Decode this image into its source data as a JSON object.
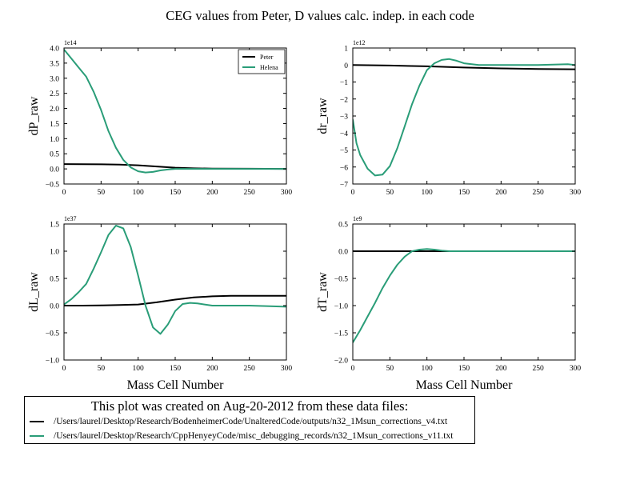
{
  "figure": {
    "title": "CEG values from Peter, D values calc. indep. in each code"
  },
  "colors": {
    "peter": "#000000",
    "helena": "#2a9d78"
  },
  "chart_data": [
    {
      "id": "dP",
      "type": "line",
      "ylabel": "dP_raw",
      "xlabel": "",
      "xlim": [
        0,
        300
      ],
      "ylim": [
        -0.5,
        4.0
      ],
      "exponent_label": "1e14",
      "x_ticks": [
        "0",
        "50",
        "100",
        "150",
        "200",
        "250",
        "300"
      ],
      "y_ticks": [
        -0.5,
        0.0,
        0.5,
        1.0,
        1.5,
        2.0,
        2.5,
        3.0,
        3.5,
        4.0
      ],
      "y_tick_labels": [
        "−0.5",
        "0.0",
        "0.5",
        "1.0",
        "1.5",
        "2.0",
        "2.5",
        "3.0",
        "3.5",
        "4.0"
      ],
      "legend": {
        "position": "top-right",
        "entries": [
          "Peter",
          "Helena"
        ]
      },
      "series": [
        {
          "name": "Peter",
          "color": "#000000",
          "x": [
            0,
            25,
            50,
            75,
            100,
            125,
            150,
            175,
            200,
            250,
            300
          ],
          "y": [
            0.16,
            0.155,
            0.15,
            0.14,
            0.12,
            0.08,
            0.04,
            0.02,
            0.01,
            0.005,
            0.0
          ]
        },
        {
          "name": "Helena",
          "color": "#2a9d78",
          "x": [
            0,
            10,
            20,
            30,
            40,
            50,
            60,
            70,
            80,
            90,
            100,
            110,
            120,
            130,
            140,
            150,
            170,
            200,
            250,
            300
          ],
          "y": [
            3.95,
            3.65,
            3.35,
            3.05,
            2.55,
            1.95,
            1.25,
            0.7,
            0.3,
            0.05,
            -0.08,
            -0.12,
            -0.1,
            -0.05,
            -0.02,
            0.0,
            0.0,
            0.0,
            0.0,
            0.0
          ]
        }
      ]
    },
    {
      "id": "dr",
      "type": "line",
      "ylabel": "dr_raw",
      "xlabel": "",
      "xlim": [
        0,
        300
      ],
      "ylim": [
        -7,
        1
      ],
      "exponent_label": "1e12",
      "x_ticks": [
        "0",
        "50",
        "100",
        "150",
        "200",
        "250",
        "300"
      ],
      "y_ticks": [
        -7,
        -6,
        -5,
        -4,
        -3,
        -2,
        -1,
        0,
        1
      ],
      "y_tick_labels": [
        "−7",
        "−6",
        "−5",
        "−4",
        "−3",
        "−2",
        "−1",
        "0",
        "1"
      ],
      "series": [
        {
          "name": "Peter",
          "color": "#000000",
          "x": [
            0,
            50,
            100,
            150,
            200,
            250,
            300
          ],
          "y": [
            0.0,
            -0.03,
            -0.08,
            -0.15,
            -0.2,
            -0.24,
            -0.25
          ]
        },
        {
          "name": "Helena",
          "color": "#2a9d78",
          "x": [
            0,
            5,
            10,
            20,
            30,
            40,
            50,
            60,
            70,
            80,
            90,
            100,
            110,
            120,
            130,
            140,
            150,
            170,
            200,
            250,
            290,
            300
          ],
          "y": [
            -3.2,
            -4.6,
            -5.3,
            -6.1,
            -6.5,
            -6.45,
            -5.95,
            -4.9,
            -3.6,
            -2.3,
            -1.2,
            -0.3,
            0.1,
            0.3,
            0.35,
            0.25,
            0.1,
            0.0,
            0.0,
            0.0,
            0.05,
            0.0
          ]
        }
      ]
    },
    {
      "id": "dL",
      "type": "line",
      "ylabel": "dL_raw",
      "xlabel": "Mass Cell Number",
      "xlim": [
        0,
        300
      ],
      "ylim": [
        -1.0,
        1.5
      ],
      "exponent_label": "1e37",
      "x_ticks": [
        "0",
        "50",
        "100",
        "150",
        "200",
        "250",
        "300"
      ],
      "y_ticks": [
        -1.0,
        -0.5,
        0.0,
        0.5,
        1.0,
        1.5
      ],
      "y_tick_labels": [
        "−1.0",
        "−0.5",
        "0.0",
        "0.5",
        "1.0",
        "1.5"
      ],
      "series": [
        {
          "name": "Peter",
          "color": "#000000",
          "x": [
            0,
            25,
            50,
            75,
            100,
            125,
            150,
            175,
            200,
            225,
            250,
            300
          ],
          "y": [
            0.0,
            0.0,
            0.005,
            0.01,
            0.02,
            0.06,
            0.11,
            0.15,
            0.17,
            0.18,
            0.18,
            0.18
          ]
        },
        {
          "name": "Helena",
          "color": "#2a9d78",
          "x": [
            0,
            10,
            20,
            30,
            40,
            50,
            60,
            70,
            80,
            90,
            100,
            110,
            120,
            130,
            140,
            150,
            160,
            170,
            180,
            200,
            250,
            300
          ],
          "y": [
            0.02,
            0.12,
            0.25,
            0.4,
            0.68,
            0.98,
            1.3,
            1.47,
            1.42,
            1.08,
            0.55,
            0.0,
            -0.4,
            -0.52,
            -0.35,
            -0.1,
            0.03,
            0.05,
            0.04,
            0.0,
            0.0,
            -0.02
          ]
        }
      ]
    },
    {
      "id": "dT",
      "type": "line",
      "ylabel": "dT_raw",
      "xlabel": "Mass Cell Number",
      "xlim": [
        0,
        300
      ],
      "ylim": [
        -2.0,
        0.5
      ],
      "exponent_label": "1e9",
      "x_ticks": [
        "0",
        "50",
        "100",
        "150",
        "200",
        "250",
        "300"
      ],
      "y_ticks": [
        -2.0,
        -1.5,
        -1.0,
        -0.5,
        0.0,
        0.5
      ],
      "y_tick_labels": [
        "−2.0",
        "−1.5",
        "−1.0",
        "−0.5",
        "0.0",
        "0.5"
      ],
      "series": [
        {
          "name": "Peter",
          "color": "#000000",
          "x": [
            0,
            100,
            200,
            300
          ],
          "y": [
            0.0,
            0.0,
            0.0,
            0.0
          ]
        },
        {
          "name": "Helena",
          "color": "#2a9d78",
          "x": [
            0,
            10,
            20,
            30,
            40,
            50,
            60,
            70,
            80,
            90,
            100,
            110,
            120,
            130,
            150,
            200,
            250,
            300
          ],
          "y": [
            -1.68,
            -1.45,
            -1.2,
            -0.95,
            -0.68,
            -0.45,
            -0.25,
            -0.1,
            0.0,
            0.03,
            0.04,
            0.03,
            0.01,
            0.0,
            0.0,
            0.0,
            0.0,
            0.0
          ]
        }
      ]
    }
  ],
  "footer": {
    "title": "This plot was created on Aug-20-2012 from these data files:",
    "entries": [
      {
        "color": "#000000",
        "text": "/Users/laurel/Desktop/Research/BodenheimerCode/UnalteredCode/outputs/n32_1Msun_corrections_v4.txt"
      },
      {
        "color": "#2a9d78",
        "text": "/Users/laurel/Desktop/Research/CppHenyeyCode/misc_debugging_records/n32_1Msun_corrections_v11.txt"
      }
    ]
  }
}
